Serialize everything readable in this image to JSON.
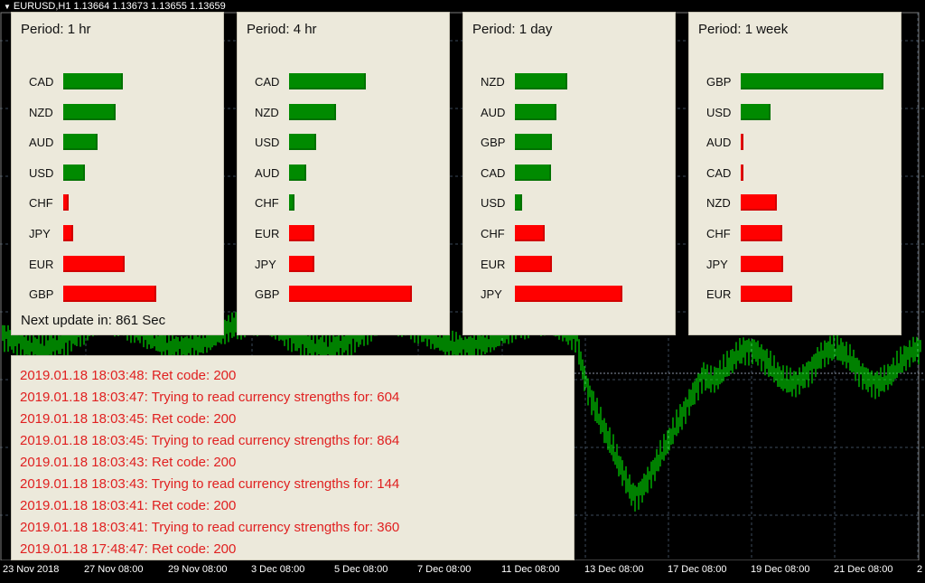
{
  "chart_header": {
    "symbol": "EURUSD,H1",
    "ohlc": "1.13664 1.13673 1.13655 1.13659"
  },
  "panels": [
    {
      "title": "Period: 1 hr",
      "footer": "Next update in: 861 Sec",
      "items": [
        {
          "currency": "CAD",
          "strength": 0.42,
          "direction": "positive"
        },
        {
          "currency": "NZD",
          "strength": 0.37,
          "direction": "positive"
        },
        {
          "currency": "AUD",
          "strength": 0.24,
          "direction": "positive"
        },
        {
          "currency": "USD",
          "strength": 0.15,
          "direction": "positive"
        },
        {
          "currency": "CHF",
          "strength": 0.04,
          "direction": "negative"
        },
        {
          "currency": "JPY",
          "strength": 0.07,
          "direction": "negative"
        },
        {
          "currency": "EUR",
          "strength": 0.43,
          "direction": "negative"
        },
        {
          "currency": "GBP",
          "strength": 0.65,
          "direction": "negative"
        }
      ]
    },
    {
      "title": "Period: 4 hr",
      "footer": "",
      "items": [
        {
          "currency": "CAD",
          "strength": 0.54,
          "direction": "positive"
        },
        {
          "currency": "NZD",
          "strength": 0.33,
          "direction": "positive"
        },
        {
          "currency": "USD",
          "strength": 0.19,
          "direction": "positive"
        },
        {
          "currency": "AUD",
          "strength": 0.12,
          "direction": "positive"
        },
        {
          "currency": "CHF",
          "strength": 0.04,
          "direction": "positive"
        },
        {
          "currency": "EUR",
          "strength": 0.18,
          "direction": "negative"
        },
        {
          "currency": "JPY",
          "strength": 0.18,
          "direction": "negative"
        },
        {
          "currency": "GBP",
          "strength": 0.86,
          "direction": "negative"
        }
      ]
    },
    {
      "title": "Period: 1 day",
      "footer": "",
      "items": [
        {
          "currency": "NZD",
          "strength": 0.37,
          "direction": "positive"
        },
        {
          "currency": "AUD",
          "strength": 0.29,
          "direction": "positive"
        },
        {
          "currency": "GBP",
          "strength": 0.26,
          "direction": "positive"
        },
        {
          "currency": "CAD",
          "strength": 0.25,
          "direction": "positive"
        },
        {
          "currency": "USD",
          "strength": 0.05,
          "direction": "positive"
        },
        {
          "currency": "CHF",
          "strength": 0.21,
          "direction": "negative"
        },
        {
          "currency": "EUR",
          "strength": 0.26,
          "direction": "negative"
        },
        {
          "currency": "JPY",
          "strength": 0.75,
          "direction": "negative"
        }
      ]
    },
    {
      "title": "Period: 1 week",
      "footer": "",
      "items": [
        {
          "currency": "GBP",
          "strength": 1.0,
          "direction": "positive"
        },
        {
          "currency": "USD",
          "strength": 0.21,
          "direction": "positive"
        },
        {
          "currency": "AUD",
          "strength": 0.02,
          "direction": "negative"
        },
        {
          "currency": "CAD",
          "strength": 0.02,
          "direction": "negative"
        },
        {
          "currency": "NZD",
          "strength": 0.25,
          "direction": "negative"
        },
        {
          "currency": "CHF",
          "strength": 0.29,
          "direction": "negative"
        },
        {
          "currency": "JPY",
          "strength": 0.3,
          "direction": "negative"
        },
        {
          "currency": "EUR",
          "strength": 0.36,
          "direction": "negative"
        }
      ]
    }
  ],
  "log": [
    "2019.01.18 18:03:48: Ret code: 200",
    "2019.01.18 18:03:47: Trying to read currency strengths for: 604",
    "2019.01.18 18:03:45: Ret code: 200",
    "2019.01.18 18:03:45: Trying to read currency strengths for: 864",
    "2019.01.18 18:03:43: Ret code: 200",
    "2019.01.18 18:03:43: Trying to read currency strengths for: 144",
    "2019.01.18 18:03:41: Ret code: 200",
    "2019.01.18 18:03:41: Trying to read currency strengths for: 360",
    "2019.01.18 17:48:47: Ret code: 200"
  ],
  "x_axis_labels": [
    "23 Nov 2018",
    "27 Nov 08:00",
    "29 Nov 08:00",
    "3 Dec 08:00",
    "5 Dec 08:00",
    "7 Dec 08:00",
    "11 Dec 08:00",
    "13 Dec 08:00",
    "17 Dec 08:00",
    "19 Dec 08:00",
    "21 Dec 08:00",
    "2"
  ],
  "colors": {
    "positive": "#008a00",
    "negative": "#ff0000",
    "candles": "#00ff00",
    "grid": "#3c4a5a",
    "log_text": "#e02020",
    "panel_bg": "#ece9db"
  }
}
